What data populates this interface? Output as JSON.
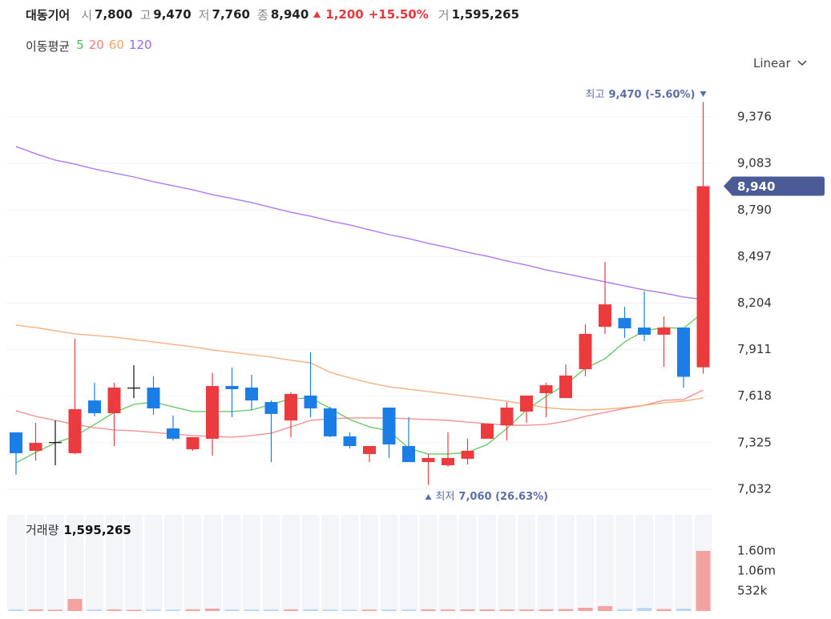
{
  "header": {
    "name": "대동기어",
    "items": [
      {
        "label": "시",
        "value": "7,800"
      },
      {
        "label": "고",
        "value": "9,470"
      },
      {
        "label": "저",
        "value": "7,760"
      },
      {
        "label": "종",
        "value": "8,940"
      }
    ],
    "change": "1,200",
    "change_pct": "+15.50%",
    "volume_label": "거",
    "volume": "1,595,265"
  },
  "ma_label": "이동평균",
  "scale_menu": "Linear",
  "chart_data": {
    "type": "candlestick",
    "up_color": "#ec3b3f",
    "down_color": "#1b7ee6",
    "flat_color": "#111111",
    "ylim": [
      6926,
      9608
    ],
    "yticks": [
      {
        "value": 7032,
        "label": "7,032"
      },
      {
        "value": 7325,
        "label": "7,325"
      },
      {
        "value": 7618,
        "label": "7,618"
      },
      {
        "value": 7911,
        "label": "7,911"
      },
      {
        "value": 8204,
        "label": "8,204"
      },
      {
        "value": 8497,
        "label": "8,497"
      },
      {
        "value": 8790,
        "label": "8,790"
      },
      {
        "value": 9083,
        "label": "9,083"
      },
      {
        "value": 9376,
        "label": "9,376"
      }
    ],
    "grid": true,
    "candles": {
      "open": [
        7390,
        7274,
        7329,
        7259,
        7591,
        7511,
        7672,
        7672,
        7415,
        7284,
        7350,
        7682,
        7672,
        7581,
        7465,
        7622,
        7541,
        7365,
        7254,
        7546,
        7304,
        7203,
        7183,
        7224,
        7350,
        7435,
        7521,
        7637,
        7606,
        7788,
        8055,
        8110,
        8050,
        8005,
        8050,
        7800
      ],
      "high": [
        7390,
        7450,
        7465,
        7979,
        7702,
        7702,
        7813,
        7743,
        7496,
        7360,
        7763,
        7798,
        7753,
        7591,
        7642,
        7894,
        7551,
        7390,
        7304,
        7546,
        7486,
        7254,
        7390,
        7350,
        7445,
        7581,
        7622,
        7702,
        7818,
        8070,
        8463,
        8181,
        8277,
        8120,
        8050,
        9470
      ],
      "low": [
        7123,
        7213,
        7183,
        7254,
        7491,
        7304,
        7606,
        7501,
        7339,
        7274,
        7244,
        7486,
        7531,
        7203,
        7360,
        7486,
        7360,
        7289,
        7203,
        7229,
        7203,
        7060,
        7173,
        7188,
        7350,
        7339,
        7450,
        7486,
        7606,
        7743,
        8010,
        7985,
        7965,
        7803,
        7672,
        7760
      ],
      "close": [
        7259,
        7324,
        7329,
        7536,
        7511,
        7672,
        7672,
        7541,
        7350,
        7360,
        7682,
        7662,
        7591,
        7506,
        7632,
        7541,
        7365,
        7304,
        7304,
        7314,
        7203,
        7229,
        7229,
        7274,
        7445,
        7546,
        7622,
        7687,
        7748,
        8010,
        8196,
        8045,
        8005,
        8050,
        7740,
        8940
      ]
    },
    "moving_averages": [
      {
        "name": "5",
        "color": "#4fc24f",
        "values": [
          7198,
          7264,
          7324,
          7365,
          7440,
          7516,
          7566,
          7581,
          7551,
          7521,
          7521,
          7521,
          7531,
          7566,
          7602,
          7607,
          7541,
          7471,
          7425,
          7400,
          7289,
          7254,
          7254,
          7264,
          7314,
          7415,
          7531,
          7617,
          7692,
          7793,
          7854,
          7960,
          8030,
          8050,
          8045,
          8146
        ]
      },
      {
        "name": "20",
        "color": "#ef7f7f",
        "values": [
          7526,
          7491,
          7466,
          7440,
          7420,
          7405,
          7400,
          7390,
          7380,
          7370,
          7365,
          7360,
          7370,
          7385,
          7425,
          7466,
          7476,
          7481,
          7481,
          7481,
          7476,
          7471,
          7466,
          7455,
          7445,
          7435,
          7435,
          7440,
          7460,
          7491,
          7516,
          7541,
          7561,
          7592,
          7597,
          7657
        ]
      },
      {
        "name": "60",
        "color": "#f2a56a",
        "values": [
          8065,
          8050,
          8030,
          8010,
          8000,
          7990,
          7975,
          7960,
          7944,
          7929,
          7909,
          7894,
          7879,
          7864,
          7844,
          7828,
          7768,
          7733,
          7702,
          7677,
          7662,
          7647,
          7632,
          7617,
          7602,
          7587,
          7566,
          7546,
          7536,
          7531,
          7536,
          7546,
          7561,
          7576,
          7587,
          7607
        ]
      },
      {
        "name": "120",
        "color": "#9d63f0",
        "values": [
          9190,
          9144,
          9104,
          9079,
          9048,
          9023,
          8998,
          8968,
          8943,
          8917,
          8887,
          8862,
          8837,
          8806,
          8776,
          8751,
          8721,
          8696,
          8665,
          8635,
          8610,
          8580,
          8554,
          8524,
          8499,
          8469,
          8443,
          8413,
          8388,
          8363,
          8338,
          8312,
          8287,
          8267,
          8242,
          8227
        ]
      }
    ],
    "high_annotation": {
      "label": "최고",
      "text": "9,470 (-5.60%)"
    },
    "low_annotation": {
      "label": "최저",
      "text": "7,060 (26.63%)"
    },
    "last_price_label": "8,940",
    "volume": {
      "label": "거래량",
      "value_label": "1,595,265",
      "up_color": "#f3a2a2",
      "down_color": "#b7d5f5",
      "panel_color": "#f4f5f9",
      "ylim": [
        0,
        2550000
      ],
      "yticks": [
        {
          "value": 532000,
          "label": "532k"
        },
        {
          "value": 1064000,
          "label": "1.06m"
        },
        {
          "value": 1596000,
          "label": "1.60m"
        }
      ],
      "values": [
        38000,
        42000,
        35000,
        319000,
        36000,
        40000,
        33000,
        37000,
        34000,
        45000,
        64000,
        39000,
        35000,
        38000,
        41000,
        44000,
        37000,
        33000,
        36000,
        40000,
        38000,
        42000,
        39000,
        41000,
        43000,
        40000,
        38000,
        44000,
        50000,
        85000,
        128000,
        47000,
        80000,
        52000,
        60000,
        1595265
      ]
    }
  }
}
